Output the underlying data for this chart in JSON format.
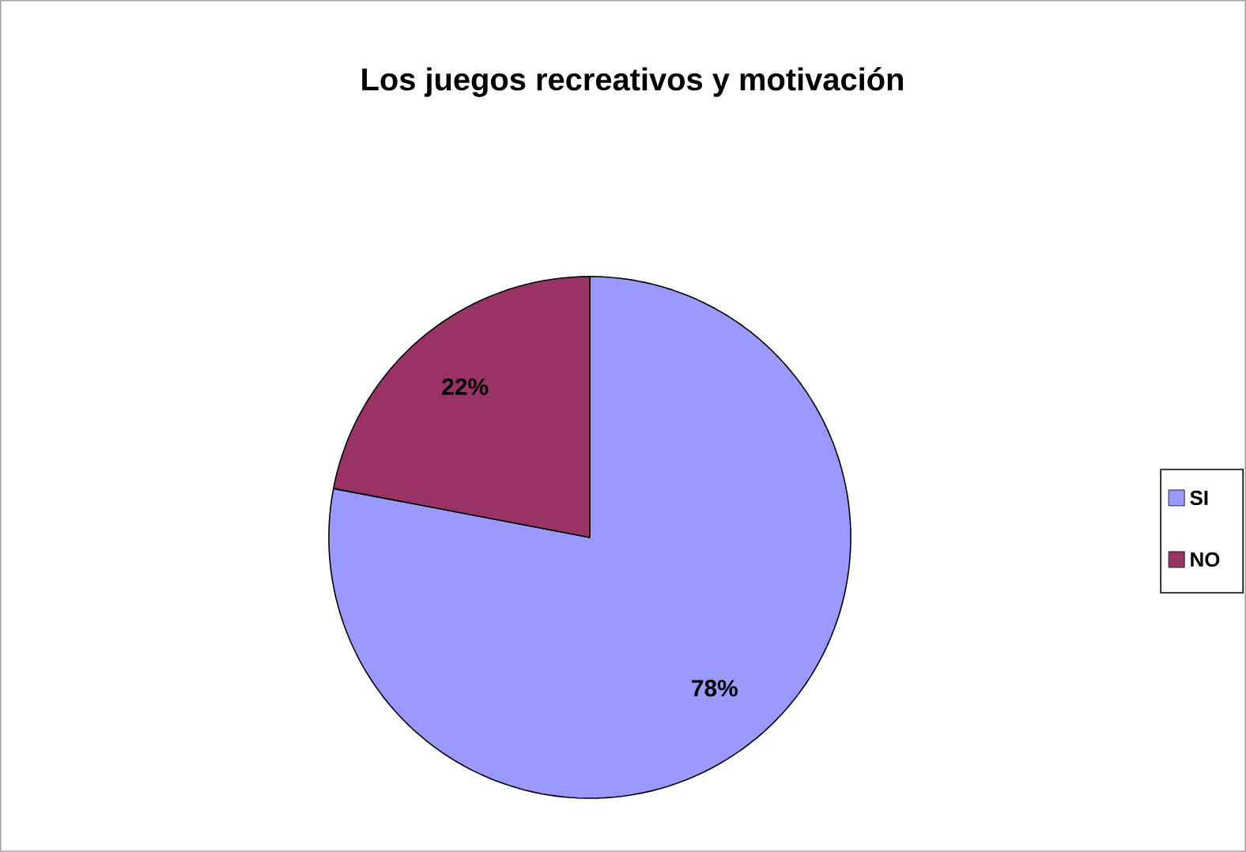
{
  "chart_data": {
    "type": "pie",
    "title": "Los juegos recreativos y motivación",
    "categories": [
      "SI",
      "NO"
    ],
    "values": [
      78,
      22
    ],
    "colors": [
      "#9999ff",
      "#993366"
    ],
    "value_labels": [
      "78%",
      "22%"
    ],
    "legend": "right"
  }
}
